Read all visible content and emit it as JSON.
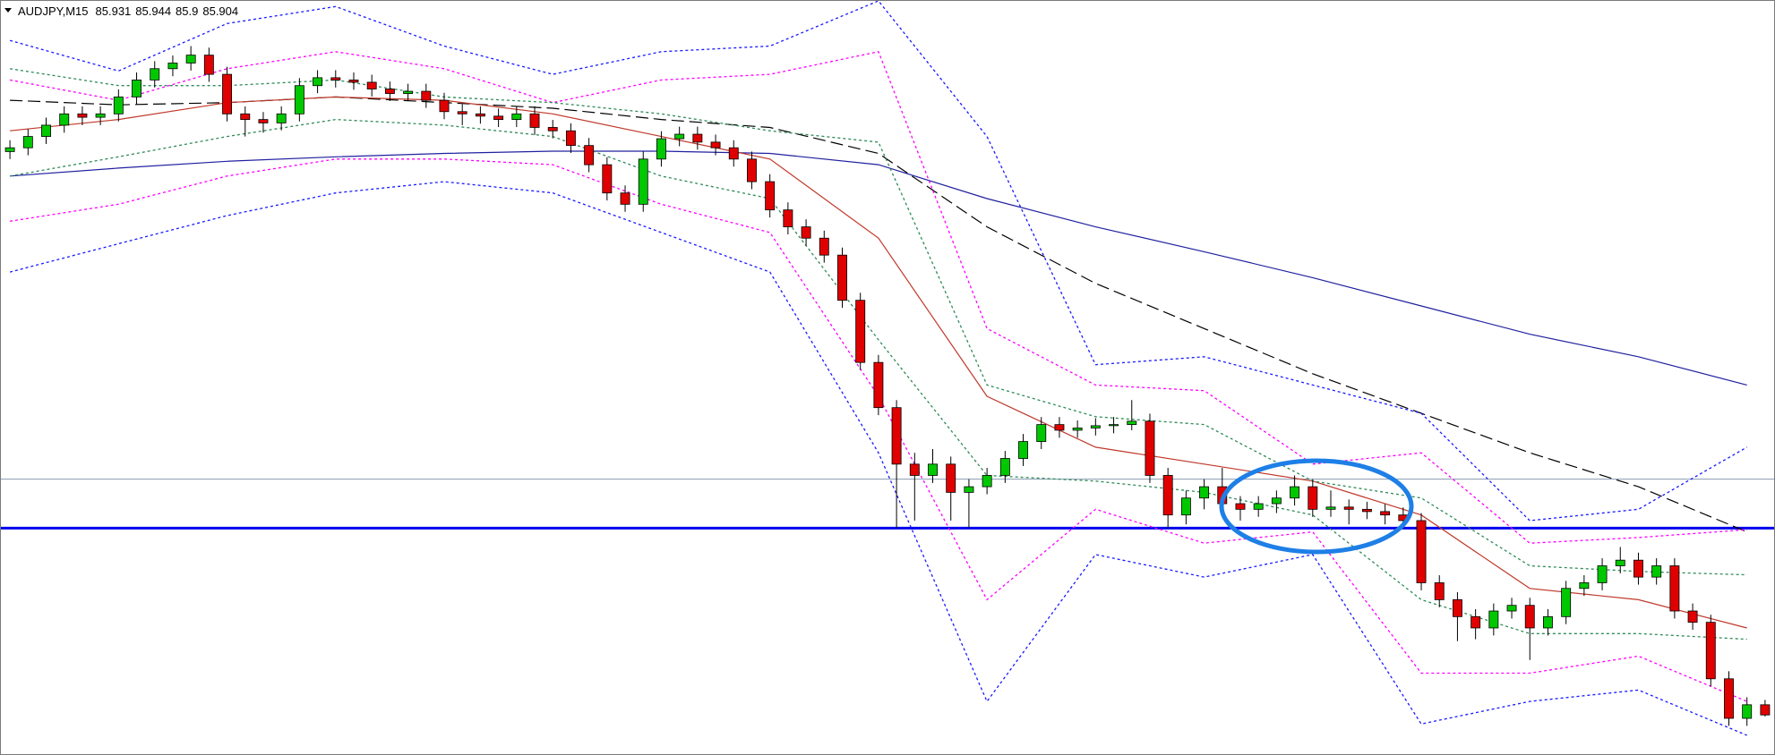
{
  "chart_data": {
    "type": "candlestick",
    "title": "AUDJPY,M15",
    "ylim": [
      85.8,
      87.8
    ],
    "xlim": [
      -0.5,
      97.5
    ],
    "up_color": "#00c800",
    "down_color": "#e00000",
    "open": [
      87.4,
      87.41,
      87.44,
      87.47,
      87.5,
      87.491,
      87.5,
      87.545,
      87.59,
      87.62,
      87.635,
      87.656,
      87.605,
      87.5,
      87.485,
      87.476,
      87.5,
      87.575,
      87.596,
      87.59,
      87.584,
      87.566,
      87.554,
      87.56,
      87.536,
      87.506,
      87.5,
      87.494,
      87.485,
      87.5,
      87.464,
      87.455,
      87.416,
      87.365,
      87.29,
      87.26,
      87.38,
      87.434,
      87.446,
      87.425,
      87.41,
      87.38,
      87.32,
      87.245,
      87.2,
      87.17,
      87.125,
      87.005,
      86.84,
      86.72,
      86.57,
      86.54,
      86.57,
      86.495,
      86.51,
      86.54,
      86.585,
      86.63,
      86.675,
      86.66,
      86.666,
      86.672,
      86.675,
      86.684,
      86.54,
      86.435,
      86.48,
      86.51,
      86.465,
      86.45,
      86.465,
      86.48,
      86.51,
      86.45,
      86.456,
      86.45,
      86.444,
      86.435,
      86.42,
      86.255,
      86.21,
      86.165,
      86.135,
      86.18,
      86.195,
      86.135,
      86.165,
      86.24,
      86.255,
      86.3,
      86.315,
      86.27,
      86.3,
      86.18,
      86.15,
      86.0,
      85.895,
      85.931
    ],
    "high": [
      87.43,
      87.46,
      87.49,
      87.52,
      87.52,
      87.52,
      87.565,
      87.61,
      87.64,
      87.655,
      87.68,
      87.676,
      87.625,
      87.52,
      87.505,
      87.52,
      87.595,
      87.616,
      87.616,
      87.61,
      87.604,
      87.586,
      87.58,
      87.58,
      87.556,
      87.526,
      87.52,
      87.514,
      87.52,
      87.52,
      87.484,
      87.475,
      87.436,
      87.385,
      87.31,
      87.4,
      87.454,
      87.466,
      87.466,
      87.445,
      87.43,
      87.4,
      87.34,
      87.265,
      87.22,
      87.19,
      87.145,
      87.025,
      86.86,
      86.74,
      86.6,
      86.61,
      86.59,
      86.53,
      86.56,
      86.605,
      86.65,
      86.695,
      86.695,
      86.686,
      86.692,
      86.695,
      86.74,
      86.704,
      86.56,
      86.5,
      86.53,
      86.56,
      86.485,
      86.485,
      86.5,
      86.54,
      86.53,
      86.5,
      86.476,
      86.47,
      86.464,
      86.455,
      86.44,
      86.275,
      86.23,
      86.185,
      86.2,
      86.215,
      86.215,
      86.185,
      86.26,
      86.275,
      86.32,
      86.35,
      86.335,
      86.32,
      86.32,
      86.2,
      86.17,
      86.02,
      85.951,
      85.944
    ],
    "low": [
      87.38,
      87.39,
      87.42,
      87.45,
      87.47,
      87.47,
      87.48,
      87.525,
      87.57,
      87.6,
      87.615,
      87.585,
      87.48,
      87.44,
      87.45,
      87.456,
      87.48,
      87.555,
      87.57,
      87.564,
      87.546,
      87.534,
      87.534,
      87.516,
      87.486,
      87.47,
      87.474,
      87.465,
      87.465,
      87.444,
      87.435,
      87.396,
      87.345,
      87.27,
      87.24,
      87.24,
      87.36,
      87.414,
      87.405,
      87.39,
      87.36,
      87.3,
      87.225,
      87.18,
      87.15,
      87.105,
      86.985,
      86.82,
      86.7,
      86.4,
      86.42,
      86.52,
      86.42,
      86.4,
      86.49,
      86.52,
      86.565,
      86.61,
      86.64,
      86.64,
      86.646,
      86.652,
      86.66,
      86.52,
      86.4,
      86.41,
      86.45,
      86.445,
      86.42,
      86.43,
      86.44,
      86.46,
      86.43,
      86.43,
      86.41,
      86.424,
      86.41,
      86.4,
      86.235,
      86.19,
      86.1,
      86.105,
      86.115,
      86.16,
      86.05,
      86.115,
      86.145,
      86.22,
      86.235,
      86.28,
      86.25,
      86.25,
      86.16,
      86.13,
      85.98,
      85.875,
      85.875,
      85.9
    ],
    "close": [
      87.41,
      87.44,
      87.47,
      87.5,
      87.491,
      87.5,
      87.545,
      87.59,
      87.62,
      87.635,
      87.656,
      87.605,
      87.5,
      87.485,
      87.476,
      87.5,
      87.575,
      87.596,
      87.59,
      87.584,
      87.566,
      87.554,
      87.56,
      87.536,
      87.506,
      87.5,
      87.494,
      87.485,
      87.5,
      87.464,
      87.455,
      87.416,
      87.365,
      87.29,
      87.26,
      87.38,
      87.434,
      87.446,
      87.425,
      87.41,
      87.38,
      87.32,
      87.245,
      87.2,
      87.17,
      87.125,
      87.005,
      86.84,
      86.72,
      86.57,
      86.54,
      86.57,
      86.495,
      86.51,
      86.54,
      86.585,
      86.63,
      86.675,
      86.66,
      86.666,
      86.672,
      86.675,
      86.684,
      86.54,
      86.435,
      86.48,
      86.51,
      86.465,
      86.45,
      86.465,
      86.48,
      86.51,
      86.45,
      86.456,
      86.45,
      86.444,
      86.435,
      86.42,
      86.255,
      86.21,
      86.165,
      86.135,
      86.18,
      86.195,
      86.135,
      86.165,
      86.24,
      86.255,
      86.3,
      86.315,
      86.27,
      86.3,
      86.18,
      86.15,
      86.0,
      85.895,
      85.931,
      85.904
    ],
    "line_x": [
      0,
      6,
      12,
      18,
      24,
      30,
      36,
      42,
      48,
      54,
      60,
      66,
      72,
      78,
      84,
      90,
      96
    ],
    "lines": [
      {
        "color": "#2020a0",
        "dash": "solid",
        "values": [
          87.335,
          87.356,
          87.374,
          87.386,
          87.395,
          87.401,
          87.401,
          87.395,
          87.365,
          87.275,
          87.2,
          87.134,
          87.065,
          86.99,
          86.915,
          86.855,
          86.78
        ]
      },
      {
        "color": "#000000",
        "dash": "dashed",
        "values": [
          87.536,
          87.524,
          87.53,
          87.545,
          87.53,
          87.515,
          87.485,
          87.464,
          87.395,
          87.2,
          87.05,
          86.93,
          86.81,
          86.705,
          86.6,
          86.51,
          86.39
        ]
      },
      {
        "color": "#c0392b",
        "dash": "solid",
        "values": [
          87.455,
          87.485,
          87.53,
          87.545,
          87.536,
          87.5,
          87.44,
          87.38,
          87.17,
          86.75,
          86.615,
          86.57,
          86.525,
          86.435,
          86.24,
          86.21,
          86.135
        ]
      },
      {
        "color": "#1a1aff",
        "dash": "dotted",
        "values": [
          87.695,
          87.614,
          87.74,
          87.785,
          87.68,
          87.605,
          87.665,
          87.68,
          87.8,
          87.44,
          86.834,
          86.855,
          86.78,
          86.705,
          86.42,
          86.45,
          86.615
        ]
      },
      {
        "color": "#ff00ff",
        "dash": "dotted",
        "values": [
          87.59,
          87.536,
          87.62,
          87.665,
          87.62,
          87.53,
          87.59,
          87.605,
          87.665,
          86.93,
          86.78,
          86.765,
          86.57,
          86.6,
          86.36,
          86.375,
          86.396
        ]
      },
      {
        "color": "#2e8b57",
        "dash": "dotted",
        "values": [
          87.62,
          87.575,
          87.575,
          87.59,
          87.545,
          87.53,
          87.5,
          87.455,
          87.425,
          86.78,
          86.696,
          86.675,
          86.525,
          86.48,
          86.3,
          86.285,
          86.276
        ]
      },
      {
        "color": "#2e8b57",
        "dash": "dotted",
        "values": [
          87.335,
          87.386,
          87.44,
          87.485,
          87.47,
          87.44,
          87.335,
          87.275,
          86.9,
          86.54,
          86.525,
          86.495,
          86.435,
          86.21,
          86.12,
          86.12,
          86.105
        ]
      },
      {
        "color": "#ff00ff",
        "dash": "dotted",
        "values": [
          87.215,
          87.26,
          87.335,
          87.38,
          87.38,
          87.365,
          87.26,
          87.185,
          86.75,
          86.21,
          86.45,
          86.36,
          86.39,
          86.015,
          86.015,
          86.06,
          85.94
        ]
      },
      {
        "color": "#1a1aff",
        "dash": "dotted",
        "values": [
          87.08,
          87.155,
          87.23,
          87.29,
          87.32,
          87.29,
          87.185,
          87.08,
          86.6,
          85.94,
          86.33,
          86.27,
          86.33,
          85.88,
          85.94,
          85.97,
          85.85
        ]
      }
    ],
    "levels": [
      {
        "value": 86.53,
        "color": "#8a9bb0",
        "width": 1
      },
      {
        "value": 86.4,
        "color": "#0000ee",
        "width": 3
      }
    ]
  }
}
